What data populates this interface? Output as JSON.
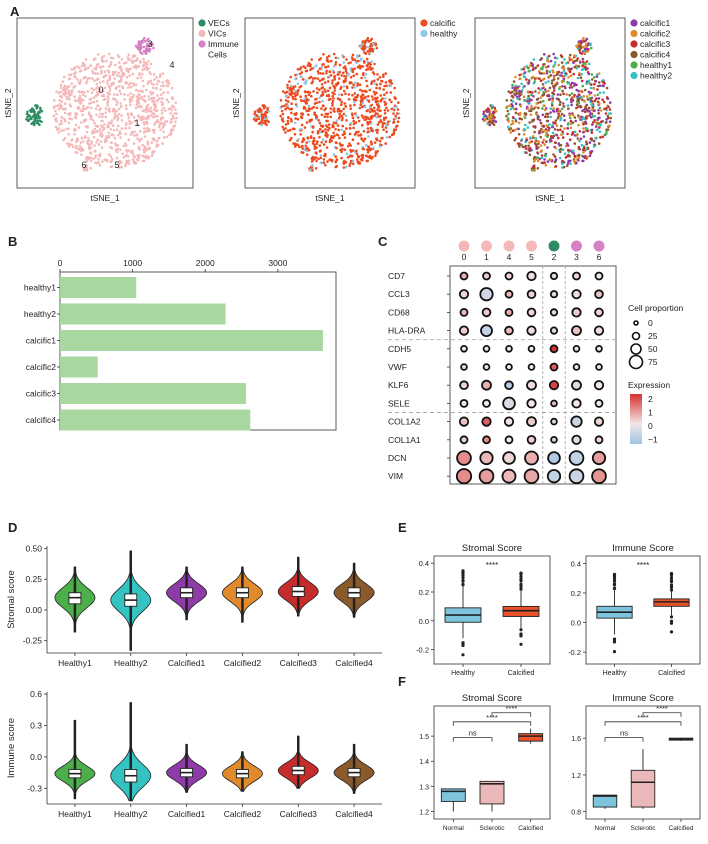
{
  "panels": {
    "A": "A",
    "B": "B",
    "C": "C",
    "D": "D",
    "E": "E",
    "F": "F"
  },
  "panelA": {
    "xlabel": "tSNE_1",
    "ylabel": "tSNE_2",
    "plot1": {
      "legend": [
        {
          "label": "VECs",
          "color": "#2e8b62"
        },
        {
          "label": "VICs",
          "color": "#f4b8b8"
        },
        {
          "label": "Immune",
          "color": "#d680c6"
        },
        {
          "label": "Cells",
          "color": ""
        }
      ],
      "cluster_labels": [
        "0",
        "1",
        "2",
        "3",
        "4",
        "5",
        "6"
      ]
    },
    "plot2": {
      "legend": [
        {
          "label": "calcific",
          "color": "#ee4a1e"
        },
        {
          "label": "healthy",
          "color": "#8fc7e6"
        }
      ]
    },
    "plot3": {
      "legend": [
        {
          "label": "calcific1",
          "color": "#8e3aa8"
        },
        {
          "label": "calcific2",
          "color": "#e08a2c"
        },
        {
          "label": "calcific3",
          "color": "#c72c2c"
        },
        {
          "label": "calcific4",
          "color": "#8b5a2b"
        },
        {
          "label": "healthy1",
          "color": "#4daf4a"
        },
        {
          "label": "healthy2",
          "color": "#35c2c2"
        }
      ]
    }
  },
  "chart_data": [
    {
      "panel": "B",
      "type": "bar",
      "orientation": "horizontal",
      "categories": [
        "healthy1",
        "healthy2",
        "calcific1",
        "calcific2",
        "calcific3",
        "calcific4"
      ],
      "values": [
        1050,
        2280,
        3620,
        520,
        2560,
        2620
      ],
      "xticks": [
        "0",
        "1000",
        "2000",
        "3000"
      ],
      "xlim": [
        0,
        3800
      ],
      "color": "#a8d8a0"
    },
    {
      "panel": "C",
      "type": "dotplot",
      "clusters": [
        "0",
        "1",
        "4",
        "5",
        "2",
        "3",
        "6"
      ],
      "cluster_colors": [
        "#f4b8b8",
        "#f4b8b8",
        "#f4b8b8",
        "#f4b8b8",
        "#2e8b62",
        "#d680c6",
        "#d680c6"
      ],
      "genes": [
        "CD7",
        "CCL3",
        "CD68",
        "HLA-DRA",
        "CDH5",
        "VWF",
        "KLF6",
        "SELE",
        "COL1A2",
        "COL1A1",
        "DCN",
        "VIM"
      ],
      "proportion": [
        [
          20,
          20,
          20,
          30,
          15,
          20,
          20
        ],
        [
          30,
          60,
          20,
          25,
          15,
          30,
          25
        ],
        [
          20,
          25,
          20,
          25,
          15,
          30,
          25
        ],
        [
          30,
          50,
          25,
          30,
          15,
          35,
          30
        ],
        [
          10,
          10,
          10,
          10,
          20,
          10,
          10
        ],
        [
          10,
          10,
          10,
          10,
          20,
          10,
          10
        ],
        [
          25,
          35,
          25,
          35,
          30,
          35,
          30
        ],
        [
          20,
          20,
          55,
          30,
          10,
          30,
          20
        ],
        [
          30,
          30,
          30,
          35,
          10,
          45,
          30
        ],
        [
          20,
          20,
          20,
          25,
          10,
          30,
          20
        ],
        [
          70,
          60,
          55,
          65,
          55,
          70,
          60
        ],
        [
          75,
          70,
          65,
          70,
          60,
          70,
          70
        ]
      ],
      "expression": [
        [
          0.6,
          0.3,
          0.2,
          0.1,
          -0.3,
          0.2,
          0.0
        ],
        [
          0.2,
          -0.4,
          0.5,
          0.2,
          -0.3,
          0.1,
          0.4
        ],
        [
          0.5,
          0.3,
          0.6,
          0.2,
          -0.3,
          0.3,
          0.2
        ],
        [
          0.3,
          -0.6,
          0.5,
          0.1,
          -0.3,
          0.4,
          0.1
        ],
        [
          0.0,
          0.0,
          0.0,
          0.0,
          2.0,
          0.0,
          0.0
        ],
        [
          0.0,
          0.0,
          0.0,
          0.0,
          1.5,
          0.0,
          0.0
        ],
        [
          0.2,
          0.6,
          -0.8,
          0.1,
          1.8,
          -0.3,
          0.0
        ],
        [
          0.0,
          0.0,
          -0.3,
          0.0,
          0.5,
          0.0,
          0.0
        ],
        [
          0.4,
          1.5,
          0.0,
          0.3,
          -0.4,
          -0.5,
          0.2
        ],
        [
          0.3,
          1.0,
          0.0,
          0.3,
          -0.4,
          -0.2,
          0.2
        ],
        [
          1.0,
          0.5,
          0.2,
          0.6,
          -0.8,
          -0.6,
          0.8
        ],
        [
          1.0,
          0.8,
          0.5,
          0.7,
          -0.6,
          -0.5,
          0.9
        ]
      ],
      "size_legend": {
        "title": "Cell proportion",
        "values": [
          "0",
          "25",
          "50",
          "75"
        ]
      },
      "color_legend": {
        "title": "Expression",
        "ticks": [
          "2",
          "1",
          "0",
          "−1"
        ],
        "high": "#d63030",
        "mid": "#f2e6e6",
        "low": "#9fc4e2"
      }
    },
    {
      "panel": "D",
      "type": "violin",
      "ylabel": "Stromal score",
      "categories": [
        "Healthy1",
        "Healthy2",
        "Calcified1",
        "Calcified2",
        "Calcified3",
        "Calcified4"
      ],
      "medians": [
        0.1,
        0.08,
        0.14,
        0.14,
        0.15,
        0.14
      ],
      "q1": [
        0.05,
        0.03,
        0.1,
        0.1,
        0.11,
        0.1
      ],
      "q3": [
        0.14,
        0.13,
        0.18,
        0.18,
        0.19,
        0.18
      ],
      "min": [
        -0.18,
        -0.33,
        -0.08,
        -0.1,
        -0.05,
        -0.06
      ],
      "max": [
        0.35,
        0.48,
        0.35,
        0.35,
        0.43,
        0.38
      ],
      "colors": [
        "#4daf4a",
        "#35c2c2",
        "#8e3aa8",
        "#e08a2c",
        "#c72c2c",
        "#8b5a2b"
      ],
      "yticks": [
        "0.50",
        "0.25",
        "0.00",
        "-0.25"
      ],
      "ylim": [
        -0.35,
        0.52
      ]
    },
    {
      "panel": "D2",
      "type": "violin",
      "ylabel": "Immune score",
      "categories": [
        "Healthy1",
        "Healthy2",
        "Calcified1",
        "Calcified2",
        "Calcified3",
        "Calcified4"
      ],
      "medians": [
        -0.16,
        -0.18,
        -0.15,
        -0.16,
        -0.13,
        -0.15
      ],
      "q1": [
        -0.2,
        -0.24,
        -0.19,
        -0.2,
        -0.17,
        -0.19
      ],
      "q3": [
        -0.12,
        -0.12,
        -0.11,
        -0.12,
        -0.09,
        -0.11
      ],
      "min": [
        -0.4,
        -0.42,
        -0.34,
        -0.33,
        -0.3,
        -0.35
      ],
      "max": [
        0.35,
        0.52,
        0.12,
        0.05,
        0.2,
        0.12
      ],
      "colors": [
        "#4daf4a",
        "#35c2c2",
        "#8e3aa8",
        "#e08a2c",
        "#c72c2c",
        "#8b5a2b"
      ],
      "yticks": [
        "0.6",
        "0.3",
        "0.0",
        "-0.3"
      ],
      "ylim": [
        -0.45,
        0.62
      ]
    },
    {
      "panel": "E",
      "type": "boxplot",
      "title": "Stromal Score",
      "categories": [
        "Healthy",
        "Calcified"
      ],
      "median": [
        0.04,
        0.07
      ],
      "q1": [
        -0.01,
        0.03
      ],
      "q3": [
        0.09,
        0.1
      ],
      "whisker_low": [
        -0.12,
        -0.05
      ],
      "whisker_high": [
        0.25,
        0.22
      ],
      "colors": [
        "#7ec4dc",
        "#e9522b"
      ],
      "yticks": [
        "0.4",
        "0.2",
        "0.0",
        "-0.2"
      ],
      "ylim": [
        -0.3,
        0.45
      ],
      "significance": "****"
    },
    {
      "panel": "E2",
      "type": "boxplot",
      "title": "Immune Score",
      "categories": [
        "Healthy",
        "Calcified"
      ],
      "median": [
        0.07,
        0.14
      ],
      "q1": [
        0.03,
        0.11
      ],
      "q3": [
        0.11,
        0.16
      ],
      "whisker_low": [
        -0.08,
        0.05
      ],
      "whisker_high": [
        0.23,
        0.22
      ],
      "colors": [
        "#7ec4dc",
        "#e9522b"
      ],
      "yticks": [
        "0.4",
        "0.2",
        "0.0",
        "-0.2"
      ],
      "ylim": [
        -0.28,
        0.45
      ],
      "significance": "****"
    },
    {
      "panel": "F",
      "type": "boxplot",
      "title": "Stromal Score",
      "categories": [
        "Normal",
        "Sclerotic",
        "Calcified"
      ],
      "median": [
        1.28,
        1.31,
        1.5
      ],
      "q1": [
        1.24,
        1.23,
        1.48
      ],
      "q3": [
        1.29,
        1.32,
        1.51
      ],
      "whisker_low": [
        1.2,
        1.2,
        1.47
      ],
      "whisker_high": [
        1.29,
        1.32,
        1.53
      ],
      "colors": [
        "#7ec4dc",
        "#eab8b8",
        "#e9522b"
      ],
      "yticks": [
        "1.5",
        "1.4",
        "1.3",
        "1.2"
      ],
      "ylim": [
        1.17,
        1.62
      ],
      "significance": [
        "ns",
        "****",
        "****"
      ]
    },
    {
      "panel": "F2",
      "type": "boxplot",
      "title": "Immune Score",
      "categories": [
        "Normal",
        "Sclerotic",
        "Calcified"
      ],
      "median": [
        0.97,
        1.12,
        1.59
      ],
      "q1": [
        0.85,
        0.85,
        1.58
      ],
      "q3": [
        0.98,
        1.25,
        1.6
      ],
      "whisker_low": [
        0.83,
        0.83,
        1.57
      ],
      "whisker_high": [
        0.98,
        1.48,
        1.6
      ],
      "colors": [
        "#7ec4dc",
        "#eab8b8",
        "#e9522b"
      ],
      "yticks": [
        "1.6",
        "1.2",
        "0.8"
      ],
      "ylim": [
        0.72,
        1.95
      ],
      "significance": [
        "ns",
        "****",
        "****"
      ]
    }
  ]
}
